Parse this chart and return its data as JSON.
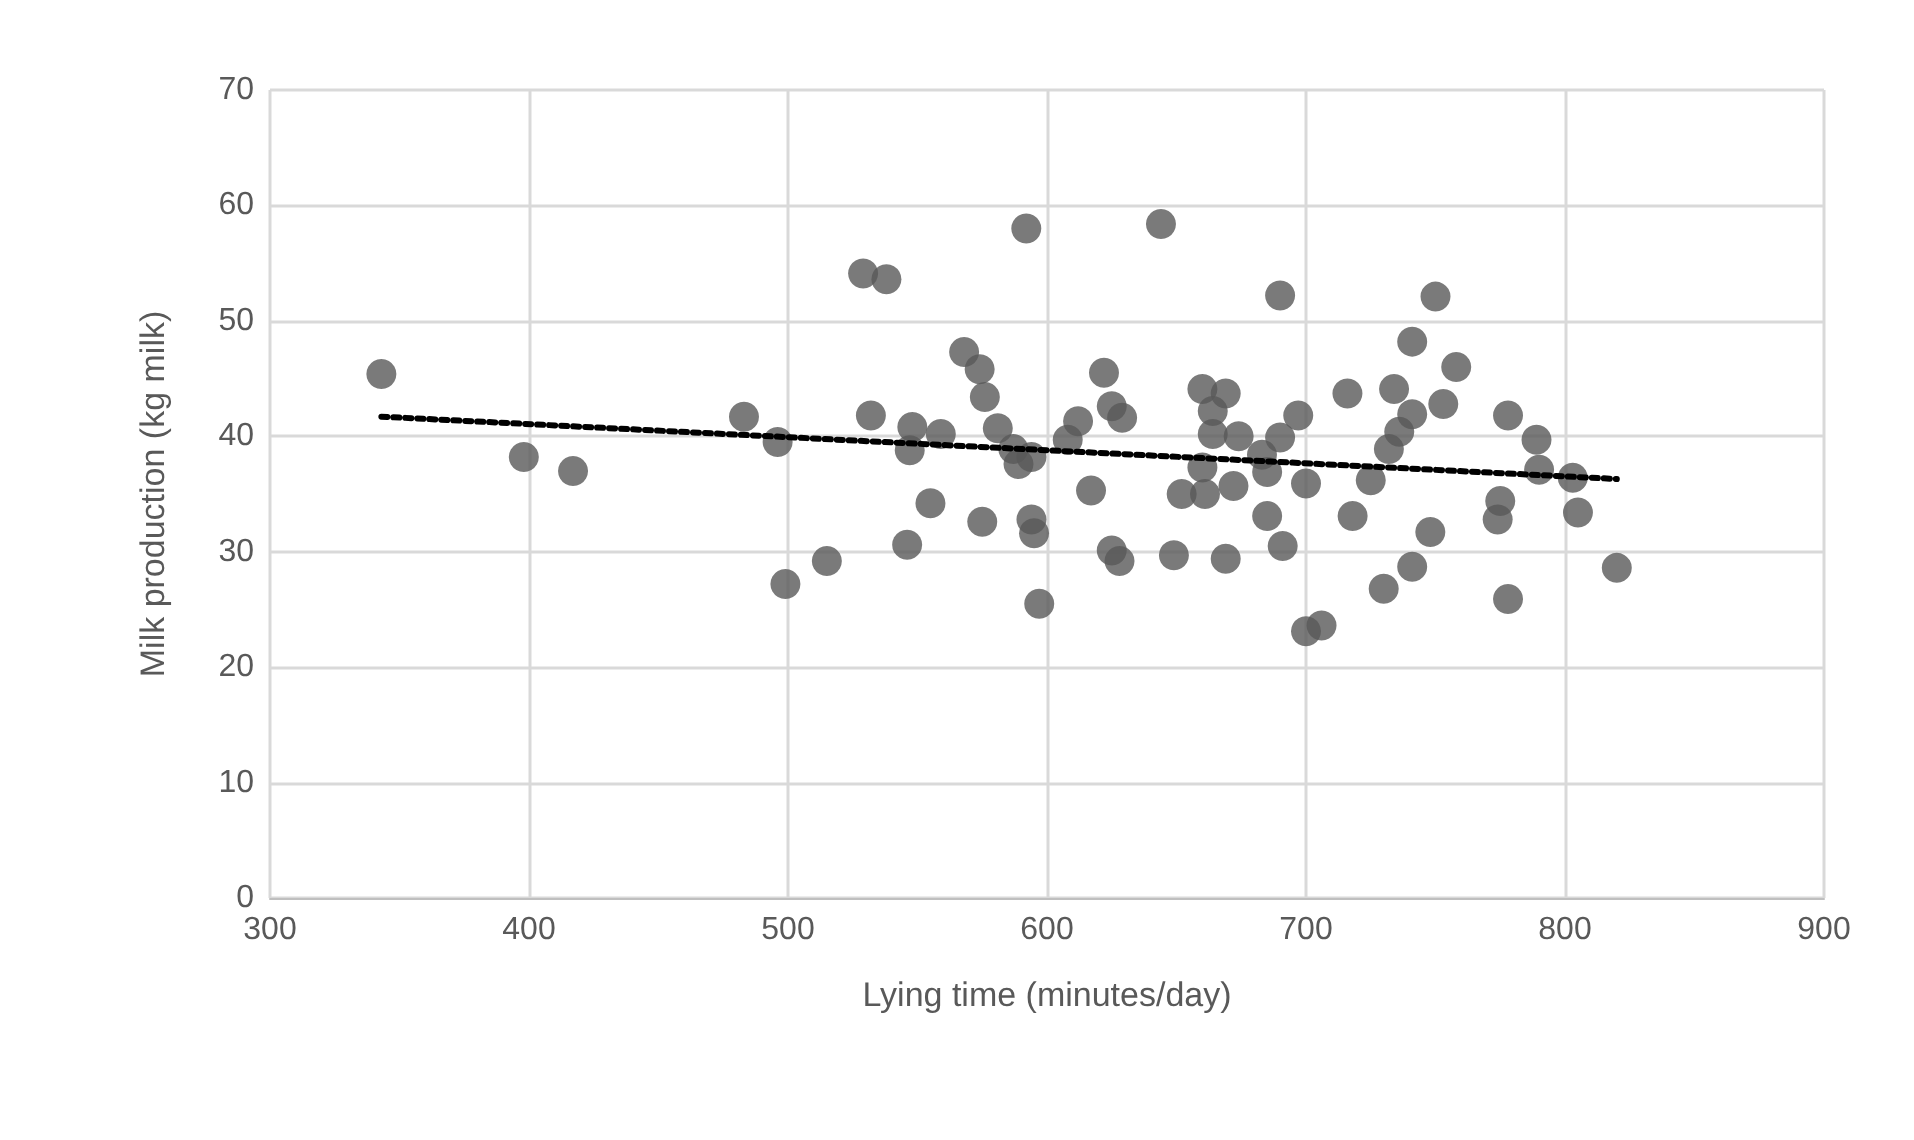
{
  "chart_data": {
    "type": "scatter",
    "xlabel": "Lying time (minutes/day)",
    "ylabel": "Milk production (kg milk)",
    "xlim": [
      300,
      900
    ],
    "xticks": [
      300,
      400,
      500,
      600,
      700,
      800,
      900
    ],
    "ylim": [
      0,
      70
    ],
    "yticks": [
      0,
      10,
      20,
      30,
      40,
      50,
      60,
      70
    ],
    "grid": true,
    "marker": "circle",
    "series": [
      {
        "color": "#595959",
        "x": [
          343,
          398,
          417,
          483,
          496,
          499,
          515,
          529,
          538,
          532,
          546,
          548,
          547,
          555,
          559,
          568,
          574,
          576,
          575,
          581,
          587,
          589,
          592,
          594,
          594,
          595,
          597,
          608,
          612,
          617,
          622,
          625,
          629,
          625,
          628,
          644,
          649,
          652,
          660,
          669,
          664,
          664,
          660,
          661,
          674,
          672,
          669,
          683,
          685,
          690,
          685,
          690,
          691,
          697,
          700,
          700,
          706,
          716,
          718,
          725,
          730,
          734,
          732,
          736,
          741,
          741,
          741,
          748,
          750,
          753,
          758,
          778,
          775,
          774,
          778,
          789,
          790,
          803,
          805,
          820
        ],
        "values": [
          45.4,
          38.2,
          37.0,
          41.7,
          39.5,
          27.2,
          29.2,
          54.1,
          53.6,
          41.8,
          30.6,
          40.8,
          38.8,
          34.2,
          40.2,
          47.3,
          45.8,
          43.4,
          32.6,
          40.7,
          38.9,
          37.6,
          58.0,
          38.2,
          32.8,
          31.6,
          25.5,
          39.7,
          41.3,
          35.3,
          45.5,
          42.6,
          41.6,
          30.1,
          29.2,
          58.4,
          29.7,
          35.0,
          44.1,
          43.7,
          42.2,
          40.2,
          37.3,
          35.0,
          40.0,
          35.7,
          29.4,
          38.4,
          36.9,
          39.9,
          33.1,
          52.2,
          30.5,
          41.8,
          35.9,
          23.1,
          23.6,
          43.7,
          33.1,
          36.2,
          26.8,
          44.1,
          38.9,
          40.4,
          41.9,
          48.2,
          28.7,
          31.7,
          52.1,
          42.8,
          46.0,
          41.8,
          34.4,
          32.8,
          25.9,
          39.7,
          37.1,
          36.4,
          33.4,
          28.6
        ]
      },
      {
        "type": "line",
        "color": "#000000",
        "line_style": "dotted",
        "marker": "none",
        "x": [
          343,
          820
        ],
        "values": [
          41.7,
          36.3
        ]
      }
    ]
  }
}
